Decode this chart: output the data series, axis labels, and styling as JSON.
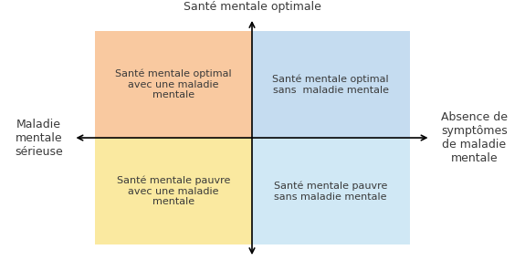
{
  "top_label": "Santé mentale optimale",
  "left_label": "Maladie\nmentale\nsérieuse",
  "right_label": "Absence de\nsymptômes\nde maladie\nmentale",
  "quad_top_left_text": "Santé mentale optimal\navec une maladie\nmentale",
  "quad_top_right_text": "Santé mentale optimal\nsans  maladie mentale",
  "quad_bot_left_text": "Santé mentale pauvre\navec une maladie\nmentale",
  "quad_bot_right_text": "Santé mentale pauvre\nsans maladie mentale",
  "color_top_left": "#F9C9A0",
  "color_top_right": "#C5DCF0",
  "color_bot_left": "#FAE9A0",
  "color_bot_right": "#D0E8F5",
  "bg_color": "#FFFFFF",
  "text_color": "#3a3a3a",
  "axis_color": "#000000",
  "font_size_quad": 8,
  "font_size_axis_label": 9
}
